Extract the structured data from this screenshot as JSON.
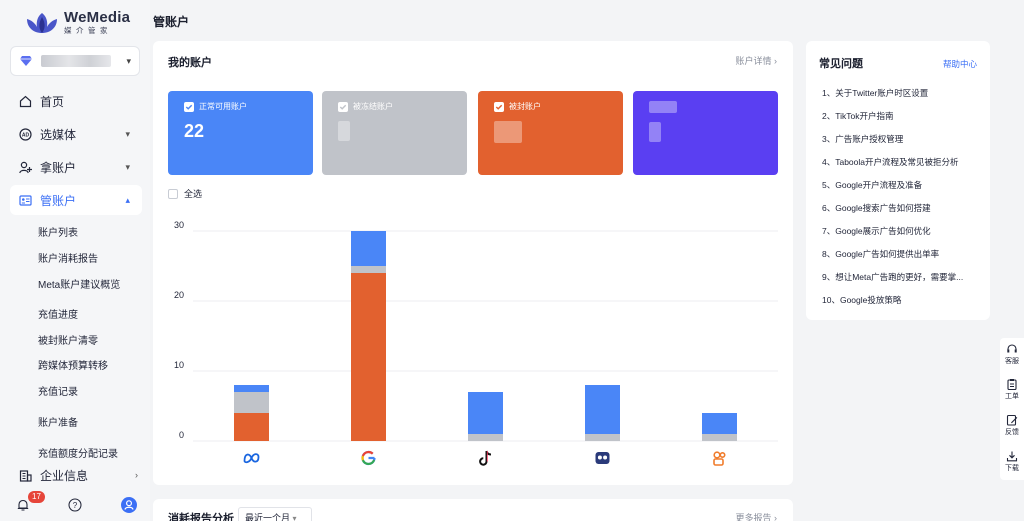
{
  "brand": {
    "name": "WeMedia",
    "sub": "媒介管家"
  },
  "header": {
    "title": "管账户"
  },
  "account_select": {
    "name": "account"
  },
  "sidebar": {
    "items": [
      {
        "label": "首页",
        "icon": "home-icon"
      },
      {
        "label": "选媒体",
        "icon": "ad-icon"
      },
      {
        "label": "拿账户",
        "icon": "user-add-icon"
      },
      {
        "label": "管账户",
        "icon": "id-card-icon"
      }
    ],
    "sub_items": [
      "账户列表",
      "账户消耗报告",
      "Meta账户建议概览",
      "充值进度",
      "被封账户清零",
      "跨媒体预算转移",
      "充值记录",
      "账户准备",
      "充值额度分配记录"
    ],
    "company": "企业信息",
    "notification_count": "17"
  },
  "my_accounts": {
    "title": "我的账户",
    "detail_link": "账户详情",
    "stats": [
      {
        "label": "正常可用账户",
        "value": "22",
        "color": "#4a86f7"
      },
      {
        "label": "被冻结账户",
        "value": "",
        "color": "#c0c3c9"
      },
      {
        "label": "被封账户",
        "value": "",
        "color": "#e2612f"
      },
      {
        "label": "",
        "value": "",
        "color": "#5a3ff2"
      }
    ],
    "select_all": "全选"
  },
  "chart_data": {
    "type": "bar",
    "stacked": true,
    "categories": [
      "Meta",
      "Google",
      "TikTok",
      "Kwai",
      "Other"
    ],
    "series": [
      {
        "color": "#e2612f",
        "values": [
          4,
          24,
          0,
          0,
          0
        ]
      },
      {
        "color": "#c0c3c9",
        "values": [
          3,
          1,
          1,
          1,
          1
        ]
      },
      {
        "color": "#4a86f7",
        "values": [
          1,
          5,
          6,
          7,
          3
        ]
      }
    ],
    "yticks": [
      "0",
      "10",
      "20",
      "30"
    ],
    "ylim": [
      0,
      30
    ],
    "grid": true
  },
  "faq": {
    "title": "常见问题",
    "help_link": "帮助中心",
    "items": [
      "1、关于Twitter账户时区设置",
      "2、TikTok开户指南",
      "3、广告账户授权管理",
      "4、Taboola开户流程及常见被拒分析",
      "5、Google开户流程及准备",
      "6、Google搜索广告如何搭建",
      "7、Google展示广告如何优化",
      "8、Google广告如何提供出单率",
      "9、想让Meta广告跑的更好，需要掌...",
      "10、Google投放策略"
    ]
  },
  "tools": [
    "客服",
    "工单",
    "反馈",
    "下载"
  ],
  "report": {
    "title": "消耗报告分析",
    "period": "最近一个月",
    "more_link": "更多报告"
  }
}
